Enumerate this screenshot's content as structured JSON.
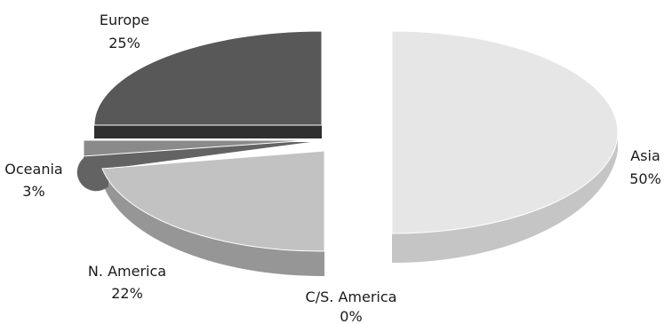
{
  "chart_data": {
    "type": "pie",
    "style": "3d exploded",
    "slices": [
      {
        "label": "Asia",
        "percent_label": "50%",
        "value": 50,
        "color": "#e6e6e6",
        "side_color": "#c5c5c5"
      },
      {
        "label": "C/S. America",
        "percent_label": "0%",
        "value": 0,
        "color": "#9a9a9a",
        "side_color": "#7a7a7a"
      },
      {
        "label": "N. America",
        "percent_label": "22%",
        "value": 22,
        "color": "#c2c2c2",
        "side_color": "#969696"
      },
      {
        "label": "Oceania",
        "percent_label": "3%",
        "value": 3,
        "color": "#8a8a8a",
        "side_color": "#636363"
      },
      {
        "label": "Europe",
        "percent_label": "25%",
        "value": 25,
        "color": "#585858",
        "side_color": "#2f2f2f"
      }
    ],
    "legend": "none",
    "title": ""
  }
}
